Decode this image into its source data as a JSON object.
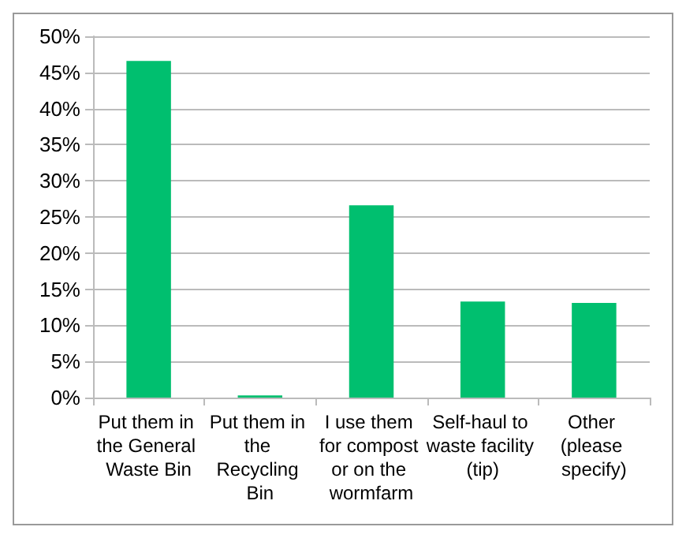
{
  "chart_data": {
    "type": "bar",
    "categories": [
      "Put them in the General Waste Bin",
      "Put them in the Recycling Bin",
      "I use them for compost or on the wormfarm",
      "Self-haul to waste facility (tip)",
      "Other (please specify)"
    ],
    "values": [
      46.6,
      0.3,
      26.6,
      13.3,
      13.1
    ],
    "color": "#00bf6f",
    "ylim": [
      0,
      50
    ],
    "yticks": [
      {
        "value": 0,
        "label": "0%"
      },
      {
        "value": 5,
        "label": "5%"
      },
      {
        "value": 10,
        "label": "10%"
      },
      {
        "value": 15,
        "label": "15%"
      },
      {
        "value": 20,
        "label": "20%"
      },
      {
        "value": 25,
        "label": "25%"
      },
      {
        "value": 30,
        "label": "30%"
      },
      {
        "value": 35,
        "label": "35%"
      },
      {
        "value": 40,
        "label": "40%"
      },
      {
        "value": 45,
        "label": "45%"
      },
      {
        "value": 50,
        "label": "50%"
      }
    ],
    "grid": "y"
  }
}
